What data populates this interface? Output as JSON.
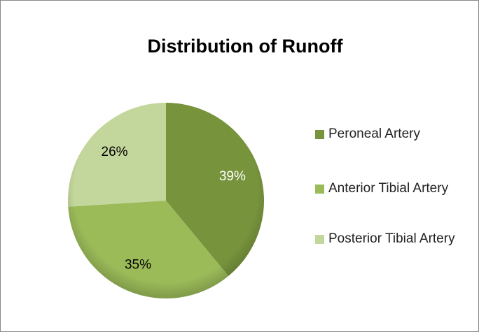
{
  "chart_data": {
    "type": "pie",
    "title": "Distribution of Runoff",
    "categories": [
      "Peroneal Artery",
      "Anterior Tibial Artery",
      "Posterior Tibial Artery"
    ],
    "values": [
      39,
      35,
      26
    ],
    "value_labels": [
      "39%",
      "35%",
      "26%"
    ],
    "colors": [
      "#77933c",
      "#9bbb59",
      "#c3d69b"
    ],
    "label_colors": [
      "#ffffff",
      "#000000",
      "#000000"
    ],
    "legend": "right"
  }
}
